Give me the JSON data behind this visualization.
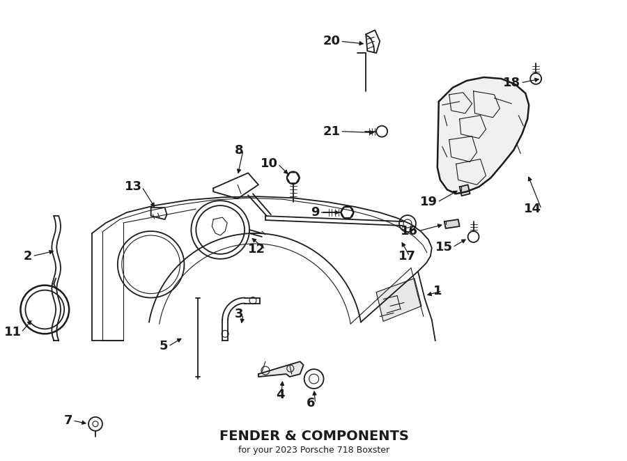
{
  "title": "FENDER & COMPONENTS",
  "subtitle": "for your 2023 Porsche 718 Boxster",
  "bg": "#ffffff",
  "lc": "#1a1a1a",
  "fig_w": 9.0,
  "fig_h": 6.62,
  "dpi": 100
}
